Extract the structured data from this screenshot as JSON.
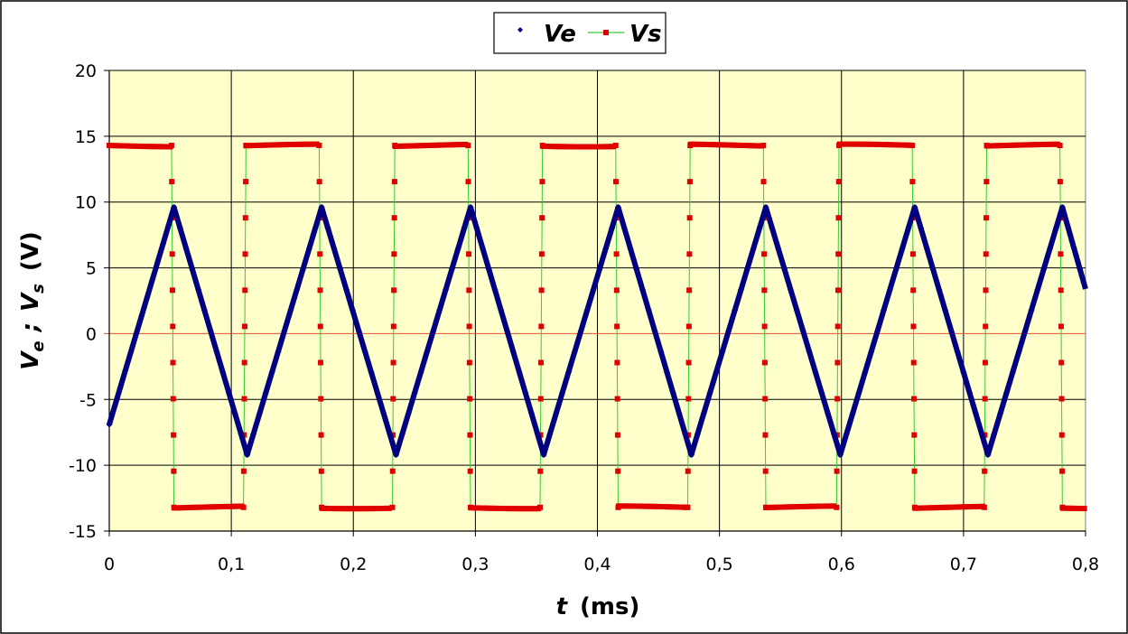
{
  "chart_data": {
    "type": "scatter",
    "title": "",
    "xlabel": {
      "main": "t",
      "unit": "(ms)"
    },
    "ylabel": {
      "v1": "V",
      "sub1": "e",
      "sep": ";",
      "v2": "V",
      "sub2": "s",
      "unit": "(V)"
    },
    "xlim": [
      0,
      0.8
    ],
    "ylim": [
      -15,
      20
    ],
    "xticks": [
      "0",
      "0,1",
      "0,2",
      "0,3",
      "0,4",
      "0,5",
      "0,6",
      "0,7",
      "0,8"
    ],
    "yticks": [
      "20",
      "15",
      "10",
      "5",
      "0",
      "-5",
      "-10",
      "-15"
    ],
    "grid": true,
    "legend_placement": "top-center",
    "colors": {
      "plot_bg": "#FFFFCC",
      "ve": "#000080",
      "vs_marker": "#E00000",
      "vs_line": "#33CC33",
      "zero_line": "#E05030"
    },
    "series": [
      {
        "name": "Ve",
        "marker": "diamond",
        "vertices": [
          [
            0,
            -6.9
          ],
          [
            0.053,
            9.6
          ],
          [
            0.113,
            -9.2
          ],
          [
            0.174,
            9.6
          ],
          [
            0.235,
            -9.2
          ],
          [
            0.296,
            9.6
          ],
          [
            0.356,
            -9.2
          ],
          [
            0.417,
            9.6
          ],
          [
            0.477,
            -9.2
          ],
          [
            0.538,
            9.6
          ],
          [
            0.599,
            -9.2
          ],
          [
            0.66,
            9.6
          ],
          [
            0.72,
            -9.2
          ],
          [
            0.781,
            9.6
          ],
          [
            0.8,
            3.4
          ]
        ]
      },
      {
        "name": "Vs",
        "marker": "square",
        "high": 14.3,
        "low": -13.2,
        "start": "high",
        "transitions": [
          0.051,
          0.11,
          0.172,
          0.232,
          0.294,
          0.353,
          0.415,
          0.474,
          0.536,
          0.596,
          0.658,
          0.717,
          0.779
        ]
      }
    ]
  }
}
